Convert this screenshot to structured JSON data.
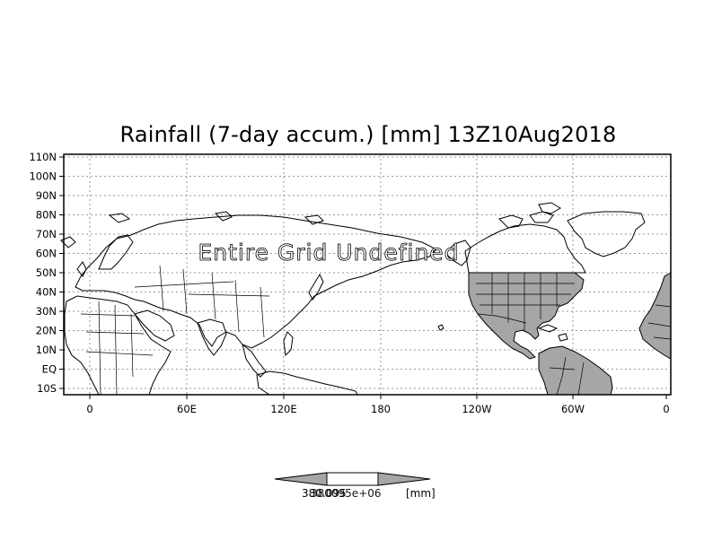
{
  "map": {
    "title": "Rainfall (7-day accum.) [mm] 13Z10Aug2018",
    "overlay_text": "Entire Grid Undefined",
    "lat_labels": [
      "110N",
      "100N",
      "90N",
      "80N",
      "70N",
      "60N",
      "50N",
      "40N",
      "30N",
      "20N",
      "10N",
      "EQ",
      "10S"
    ],
    "lon_labels": [
      "0",
      "60E",
      "120E",
      "180",
      "120W",
      "60W",
      "0"
    ],
    "land_fill_color": "#a6a6a6",
    "grid_color": "#9a9a9a",
    "coast_color": "#000000",
    "grid": true
  },
  "colorbar": {
    "value_left": "380.095",
    "value_overlap": "380095e+06",
    "units": "[mm]",
    "fill_color": "#a6a6a6"
  }
}
